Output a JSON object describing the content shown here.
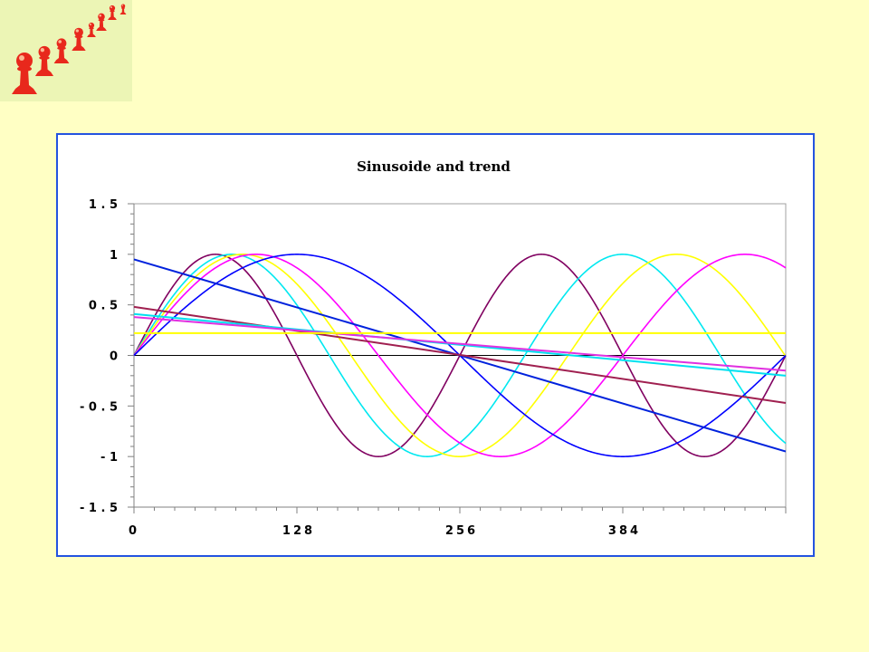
{
  "logo": {
    "name": "red-pawns-logo",
    "colors": [
      "#e8281c",
      "#ffd9b0"
    ]
  },
  "chart_data": {
    "type": "line",
    "title": "Sinusoide and trend",
    "xlabel": "",
    "ylabel": "",
    "xlim": [
      0,
      512
    ],
    "ylim": [
      -1.5,
      1.5
    ],
    "x_ticks": [
      0,
      128,
      256,
      384
    ],
    "x_tick_labels": [
      "0",
      "128",
      "256",
      "384"
    ],
    "y_ticks": [
      1.5,
      1,
      0.5,
      0,
      -0.5,
      -1,
      -1.5
    ],
    "y_tick_labels": [
      "1.5",
      "1",
      "0.5",
      "0",
      "-0.5",
      "-1",
      "-1.5"
    ],
    "grid": false,
    "legend": "none",
    "frame_color": "#2453e0",
    "zero_line_color": "#000000",
    "series": [
      {
        "kind": "sine",
        "period": 256,
        "color": "#800060"
      },
      {
        "kind": "sine",
        "period": 307,
        "color": "#00e8f0"
      },
      {
        "kind": "sine",
        "period": 341,
        "color": "#ffff00"
      },
      {
        "kind": "sine",
        "period": 384,
        "color": "#ff00ff"
      },
      {
        "kind": "sine",
        "period": 512,
        "color": "#0000ff"
      },
      {
        "kind": "trend",
        "x": [
          0,
          512
        ],
        "y": [
          0.95,
          -0.95
        ],
        "color": "#0022dd"
      },
      {
        "kind": "trend",
        "x": [
          0,
          512
        ],
        "y": [
          0.48,
          -0.47
        ],
        "color": "#a02050"
      },
      {
        "kind": "trend",
        "x": [
          0,
          512
        ],
        "y": [
          0.41,
          -0.2
        ],
        "color": "#00e0f0"
      },
      {
        "kind": "trend",
        "x": [
          0,
          512
        ],
        "y": [
          0.38,
          -0.15
        ],
        "color": "#e030e0"
      },
      {
        "kind": "trend",
        "x": [
          0,
          512
        ],
        "y": [
          0.22,
          0.22
        ],
        "color": "#ffff00"
      }
    ]
  }
}
